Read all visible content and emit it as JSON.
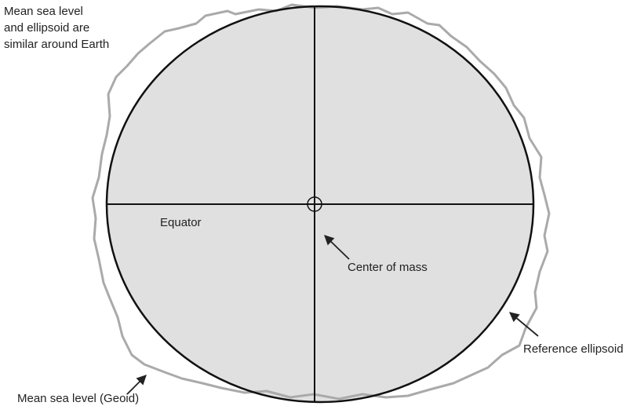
{
  "notes": {
    "top_left": [
      "Mean sea level",
      "and ellipsoid are",
      "similar around Earth"
    ]
  },
  "labels": {
    "equator": "Equator",
    "center": "Center of mass",
    "ellipsoid": "Reference ellipsoid",
    "geoid": "Mean sea level (Geoid)"
  }
}
